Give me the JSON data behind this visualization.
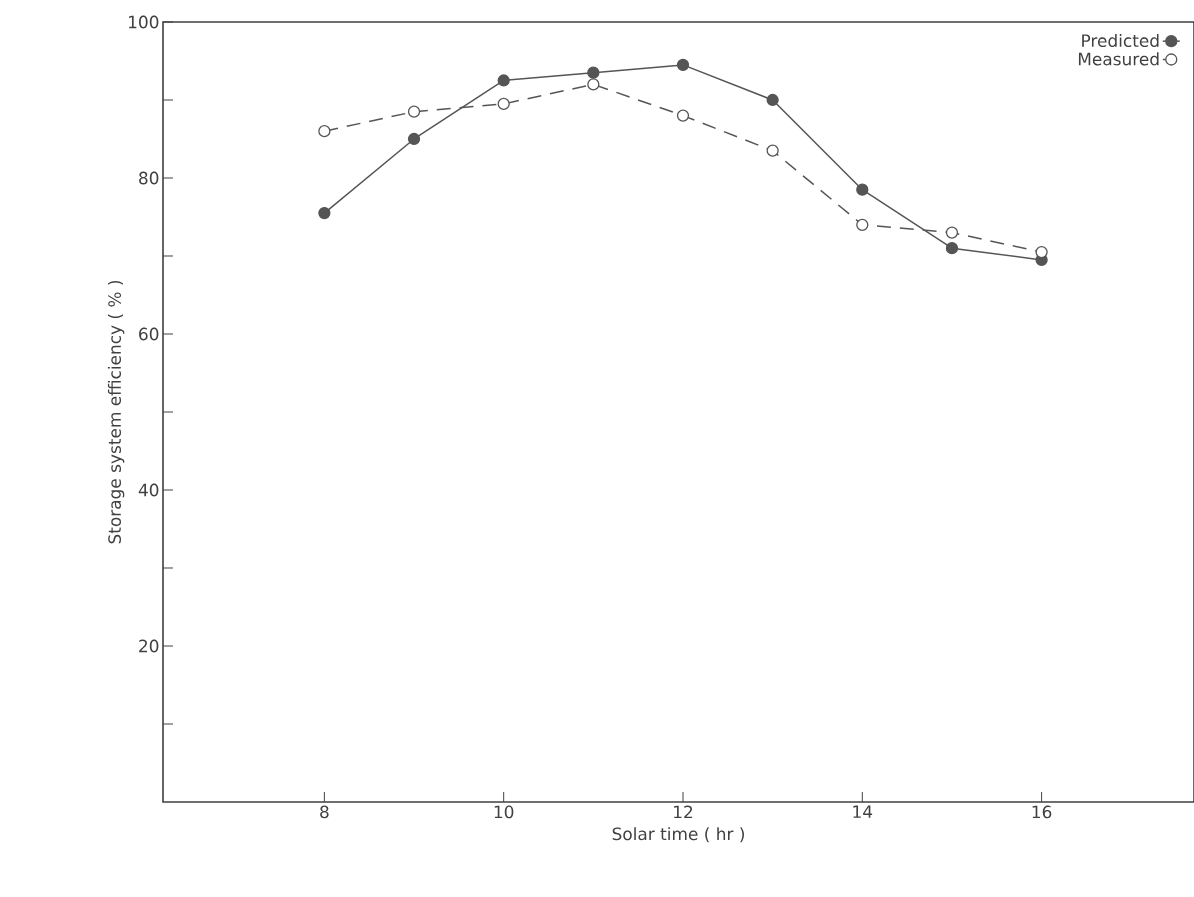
{
  "chart_data": {
    "type": "line",
    "xlabel": "Solar time ( hr )",
    "ylabel": "Storage system efficiency ( % )",
    "xlim": [
      6.2,
      17.7
    ],
    "xticks": [
      8,
      10,
      12,
      14,
      16
    ],
    "ylim": [
      0,
      100
    ],
    "yticks": [
      {
        "value": 10,
        "label": null
      },
      20,
      {
        "value": 30,
        "label": null
      },
      40,
      {
        "value": 50,
        "label": null
      },
      60,
      {
        "value": 70,
        "label": null
      },
      80,
      {
        "value": 90,
        "label": null
      },
      100
    ],
    "legend": "top right",
    "grid": false,
    "series": [
      {
        "name": "Predicted",
        "color": "#555555",
        "marker": "circle",
        "line_style": "solid",
        "x": [
          8,
          9,
          10,
          11,
          12,
          13,
          14,
          15,
          16
        ],
        "values": [
          75.5,
          85,
          92.5,
          93.5,
          94.5,
          90,
          78.5,
          71,
          69.5
        ]
      },
      {
        "name": "Measured",
        "color": "#555555",
        "marker": "circle",
        "line_style": "dashed",
        "x": [
          8,
          9,
          10,
          11,
          12,
          13,
          14,
          15,
          16
        ],
        "values": [
          86,
          88.5,
          89.5,
          92,
          88,
          83.5,
          74,
          73,
          70.5
        ]
      }
    ]
  }
}
